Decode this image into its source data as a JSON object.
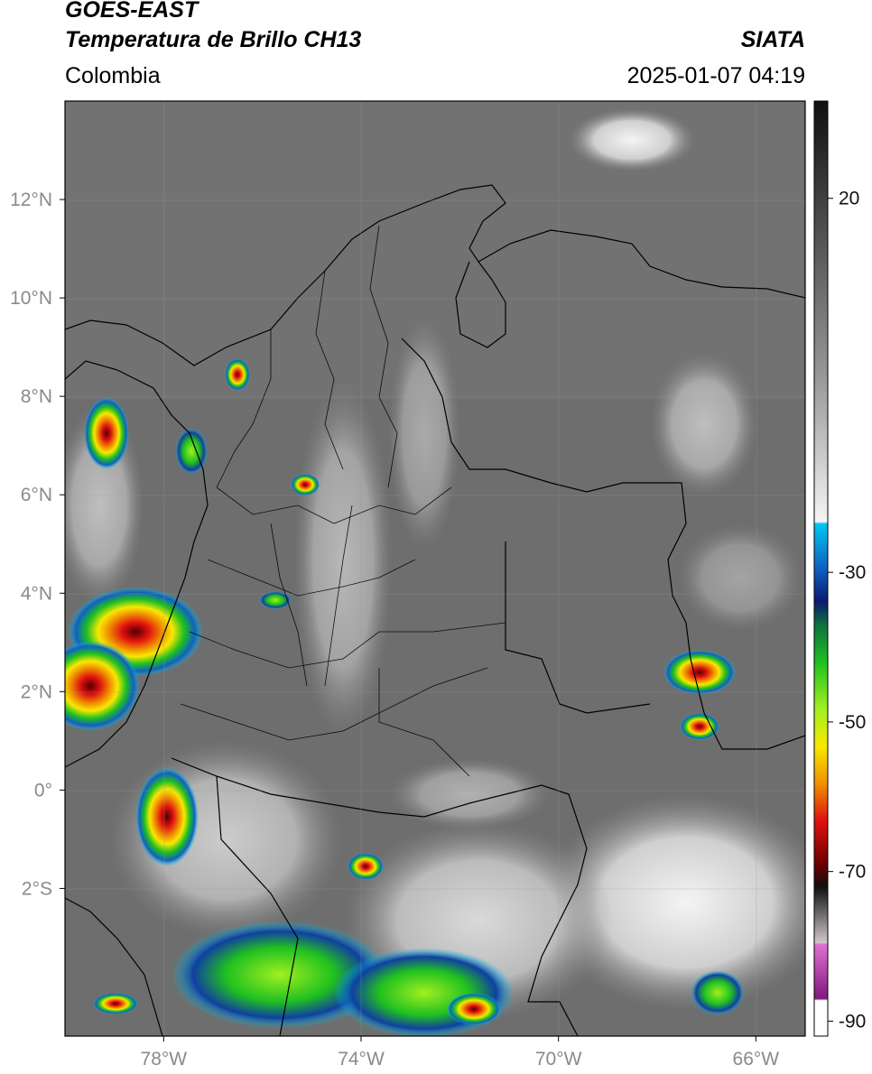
{
  "header": {
    "satellite": "GOES-EAST",
    "product": "Temperatura de Brillo CH13",
    "region": "Colombia",
    "brand": "SIATA",
    "datetime": "2025-01-07 04:19"
  },
  "map": {
    "lon_range": [
      -80,
      -65
    ],
    "lat_range": [
      -5,
      14
    ],
    "lat_ticks": [
      {
        "value": 12,
        "label": "12°N"
      },
      {
        "value": 10,
        "label": "10°N"
      },
      {
        "value": 8,
        "label": "8°N"
      },
      {
        "value": 6,
        "label": "6°N"
      },
      {
        "value": 4,
        "label": "4°N"
      },
      {
        "value": 2,
        "label": "2°N"
      },
      {
        "value": 0,
        "label": "0°"
      },
      {
        "value": -2,
        "label": "2°S"
      }
    ],
    "lon_ticks": [
      {
        "value": -78,
        "label": "78°W"
      },
      {
        "value": -74,
        "label": "74°W"
      },
      {
        "value": -70,
        "label": "70°W"
      },
      {
        "value": -66,
        "label": "66°W"
      }
    ]
  },
  "colorbar": {
    "range": [
      -92,
      33
    ],
    "ticks": [
      {
        "value": 20,
        "label": "20"
      },
      {
        "value": -30,
        "label": "-30"
      },
      {
        "value": -50,
        "label": "-50"
      },
      {
        "value": -70,
        "label": "-70"
      },
      {
        "value": -90,
        "label": "-90"
      }
    ],
    "colors": {
      "warm_black": "#101010",
      "warm_grey": "#9a9a9a",
      "cool_white": "#f5f5f5",
      "cyan": "#00c8f0",
      "blue": "#1040a0",
      "navy": "#0a1a70",
      "green": "#20c020",
      "lime": "#a0f020",
      "yellow": "#f8e800",
      "orange": "#f09000",
      "red": "#e01010",
      "darkred": "#600000",
      "magenta": "#d050c0",
      "purple": "#801880"
    }
  }
}
